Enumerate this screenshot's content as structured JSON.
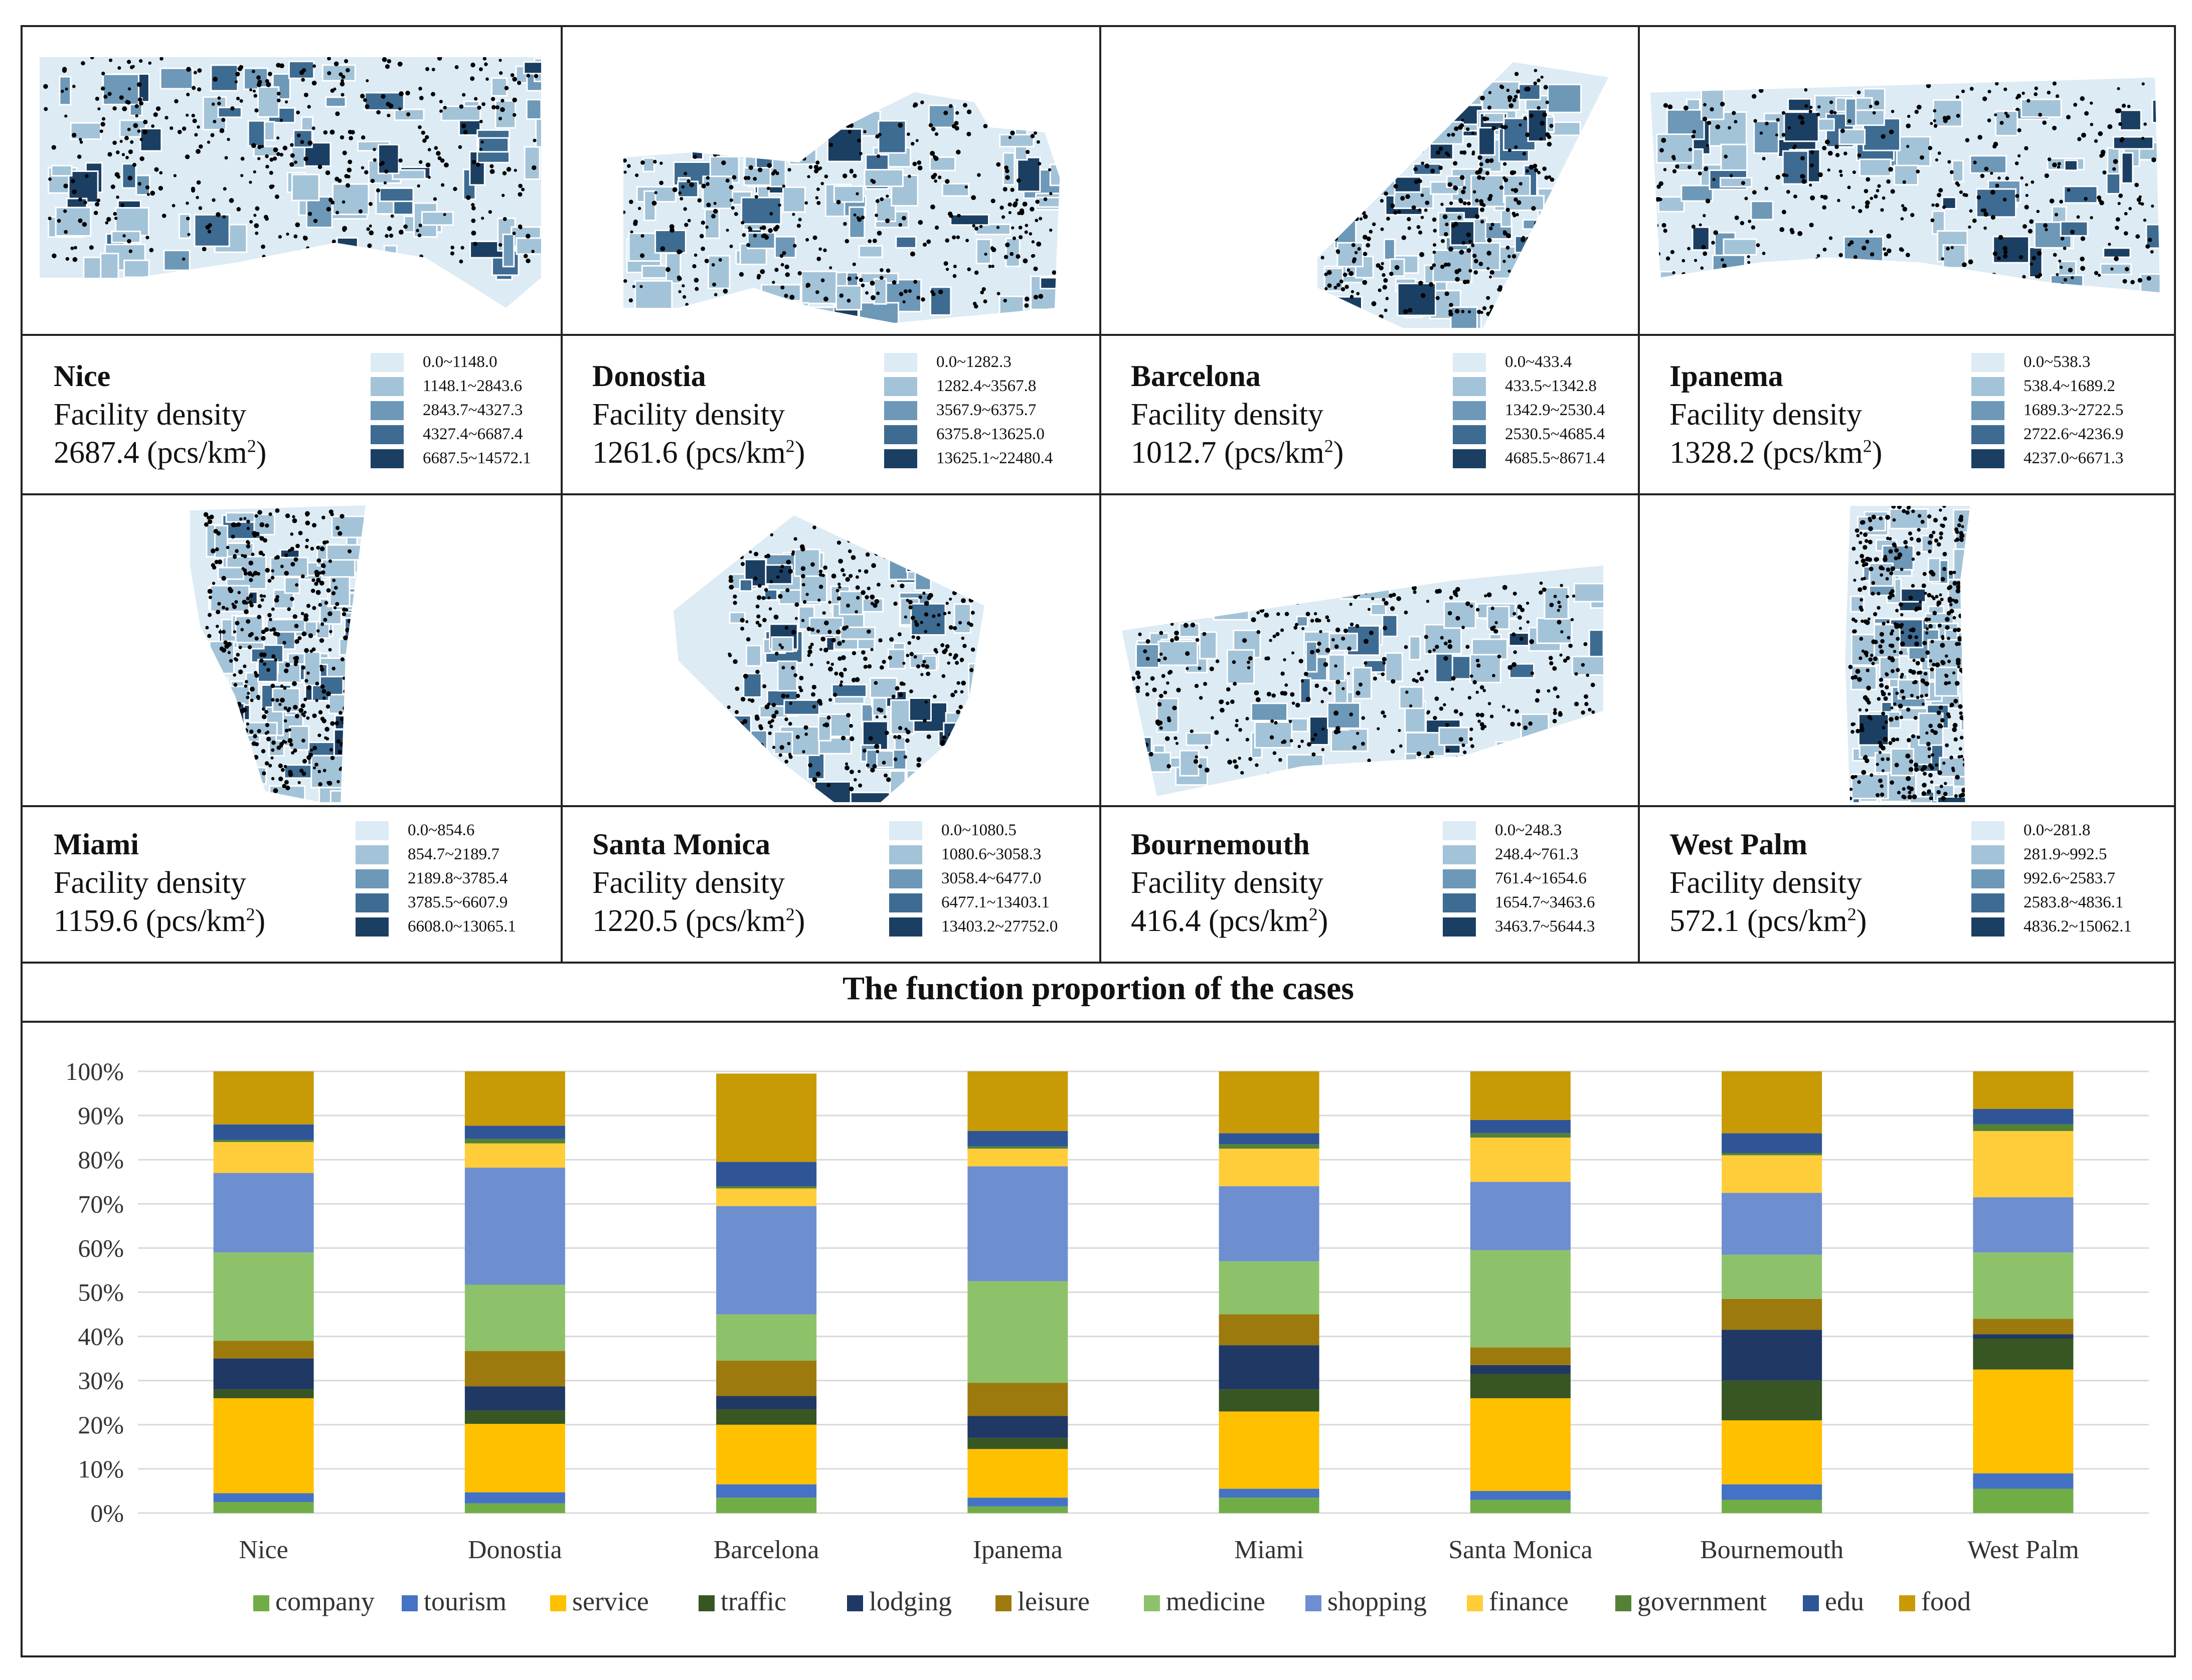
{
  "panels": [
    {
      "city": "Nice",
      "density_label": "Facility density",
      "density_value": "2687.4 (pcs/km",
      "unit_sup": "2",
      "unit_close": ")",
      "legend": [
        "0.0~1148.0",
        "1148.1~2843.6",
        "2843.7~4327.3",
        "4327.4~6687.4",
        "6687.5~14572.1"
      ]
    },
    {
      "city": "Donostia",
      "density_label": "Facility density",
      "density_value": "1261.6 (pcs/km",
      "unit_sup": "2",
      "unit_close": ")",
      "legend": [
        "0.0~1282.3",
        "1282.4~3567.8",
        "3567.9~6375.7",
        "6375.8~13625.0",
        "13625.1~22480.4"
      ]
    },
    {
      "city": "Barcelona",
      "density_label": "Facility density",
      "density_value": "1012.7 (pcs/km",
      "unit_sup": "2",
      "unit_close": ")",
      "legend": [
        "0.0~433.4",
        "433.5~1342.8",
        "1342.9~2530.4",
        "2530.5~4685.4",
        "4685.5~8671.4"
      ]
    },
    {
      "city": "Ipanema",
      "density_label": "Facility density",
      "density_value": "1328.2 (pcs/km",
      "unit_sup": "2",
      "unit_close": ")",
      "legend": [
        "0.0~538.3",
        "538.4~1689.2",
        "1689.3~2722.5",
        "2722.6~4236.9",
        "4237.0~6671.3"
      ]
    },
    {
      "city": "Miami",
      "density_label": "Facility density",
      "density_value": "1159.6 (pcs/km",
      "unit_sup": "2",
      "unit_close": ")",
      "legend": [
        "0.0~854.6",
        "854.7~2189.7",
        "2189.8~3785.4",
        "3785.5~6607.9",
        "6608.0~13065.1"
      ]
    },
    {
      "city": "Santa Monica",
      "density_label": "Facility density",
      "density_value": "1220.5 (pcs/km",
      "unit_sup": "2",
      "unit_close": ")",
      "legend": [
        "0.0~1080.5",
        "1080.6~3058.3",
        "3058.4~6477.0",
        "6477.1~13403.1",
        "13403.2~27752.0"
      ]
    },
    {
      "city": "Bournemouth",
      "density_label": "Facility density",
      "density_value": "416.4 (pcs/km",
      "unit_sup": "2",
      "unit_close": ")",
      "legend": [
        "0.0~248.3",
        "248.4~761.3",
        "761.4~1654.6",
        "1654.7~3463.6",
        "3463.7~5644.3"
      ]
    },
    {
      "city": "West Palm",
      "density_label": "Facility density",
      "density_value": "572.1 (pcs/km",
      "unit_sup": "2",
      "unit_close": ")",
      "legend": [
        "0.0~281.8",
        "281.9~992.5",
        "992.6~2583.7",
        "2583.8~4836.1",
        "4836.2~15062.1"
      ]
    }
  ],
  "legend_colors": [
    "#dcebf4",
    "#a3c3d8",
    "#6d98b8",
    "#3d6b92",
    "#1b3f63"
  ],
  "chart_data": {
    "type": "bar",
    "stacked": true,
    "title": "The function proportion of the cases",
    "xlabel": "",
    "ylabel": "",
    "ylim": [
      0,
      100
    ],
    "ytick_labels": [
      "0%",
      "10%",
      "20%",
      "30%",
      "40%",
      "50%",
      "60%",
      "70%",
      "80%",
      "90%",
      "100%"
    ],
    "categories": [
      "Nice",
      "Donostia",
      "Barcelona",
      "Ipanema",
      "Miami",
      "Santa Monica",
      "Bournemouth",
      "West Palm"
    ],
    "legend_position": "bottom",
    "series": [
      {
        "name": "company",
        "color": "#70ad47",
        "values": [
          2.5,
          2.2,
          3.5,
          1.5,
          3.5,
          3.0,
          3.0,
          5.5
        ]
      },
      {
        "name": "tourism",
        "color": "#4472c4",
        "values": [
          2.0,
          2.5,
          3.0,
          2.0,
          2.0,
          2.0,
          3.5,
          3.5
        ]
      },
      {
        "name": "service",
        "color": "#ffc000",
        "values": [
          21.5,
          15.5,
          13.5,
          11.0,
          17.5,
          21.0,
          14.5,
          23.5
        ]
      },
      {
        "name": "traffic",
        "color": "#375623",
        "values": [
          2.0,
          3.0,
          3.5,
          2.5,
          5.0,
          5.5,
          9.0,
          7.0
        ]
      },
      {
        "name": "lodging",
        "color": "#203864",
        "values": [
          7.0,
          5.5,
          3.0,
          5.0,
          10.0,
          2.0,
          11.5,
          1.0
        ]
      },
      {
        "name": "leisure",
        "color": "#9c7a0e",
        "values": [
          4.0,
          8.0,
          8.0,
          7.5,
          7.0,
          4.0,
          7.0,
          3.5
        ]
      },
      {
        "name": "medicine",
        "color": "#8dc26a",
        "values": [
          20.0,
          15.0,
          10.5,
          23.0,
          12.0,
          22.0,
          10.0,
          15.0
        ]
      },
      {
        "name": "shopping",
        "color": "#6d8fcf",
        "values": [
          18.0,
          26.5,
          24.5,
          26.0,
          17.0,
          15.5,
          14.0,
          12.5
        ]
      },
      {
        "name": "finance",
        "color": "#ffcd3a",
        "values": [
          7.0,
          5.5,
          4.0,
          4.0,
          8.5,
          10.0,
          8.5,
          15.0
        ]
      },
      {
        "name": "government",
        "color": "#548235",
        "values": [
          0.5,
          1.0,
          0.5,
          0.5,
          1.0,
          1.0,
          0.5,
          1.5
        ]
      },
      {
        "name": "edu",
        "color": "#2f5597",
        "values": [
          3.5,
          3.0,
          5.5,
          3.5,
          2.5,
          3.0,
          4.5,
          3.5
        ]
      },
      {
        "name": "food",
        "color": "#c89a06",
        "values": [
          12.0,
          12.3,
          20.0,
          13.5,
          14.0,
          11.0,
          14.0,
          8.5
        ]
      }
    ]
  }
}
